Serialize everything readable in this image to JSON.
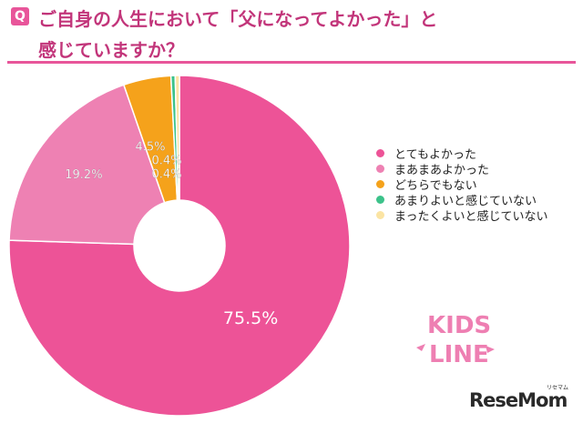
{
  "question": {
    "badge": "Q",
    "line1": "ご自身の人生において「父になってよかった」と",
    "line2": "感じていますか？"
  },
  "chart_data": {
    "type": "pie",
    "donut": true,
    "start": "top",
    "direction": "clockwise",
    "labels": [
      "とてもよかった",
      "まあまあよかった",
      "どちらでもない",
      "あまりよいと感じていない",
      "まったくよいと感じていない"
    ],
    "values": [
      75.5,
      19.2,
      4.5,
      0.4,
      0.4
    ],
    "value_labels": [
      "75.5%",
      "19.2%",
      "4.5%",
      "0.4%",
      "0.4%"
    ],
    "colors": [
      "#ed5397",
      "#ee81b3",
      "#f5a21b",
      "#3cc28a",
      "#fbe4a3"
    ],
    "legend_position": "right"
  },
  "logos": {
    "kids_line_1": "KIDS",
    "kids_line_2": "LINE",
    "resemom": "ReseMom",
    "resemom_kana": "リセマム"
  }
}
